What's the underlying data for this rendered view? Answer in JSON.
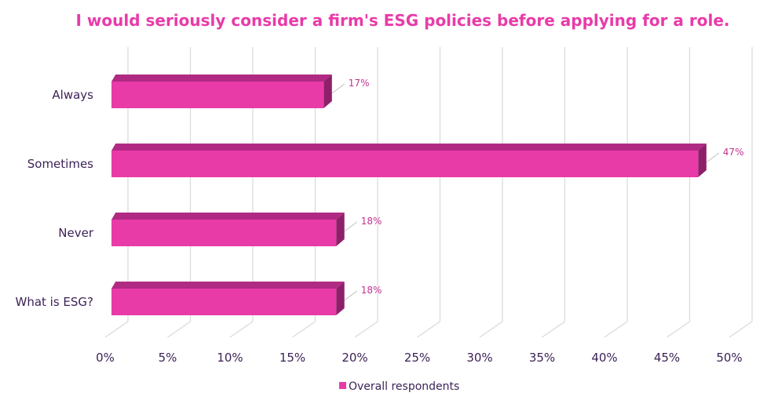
{
  "colors": {
    "title": "#e83ba8",
    "bar_front": "#e83ba8",
    "bar_top": "#b02a83",
    "bar_side": "#8e1f69",
    "label_text": "#3d2257",
    "data_label": "#c2338f",
    "grid": "#d9d9d9"
  },
  "chart_data": {
    "type": "bar",
    "orientation": "horizontal",
    "style": "3d",
    "title": "I would seriously consider a firm's ESG policies before applying for a role.",
    "categories": [
      "Always",
      "Sometimes",
      "Never",
      "What is ESG?"
    ],
    "series": [
      {
        "name": "Overall respondents",
        "values": [
          17,
          47,
          18,
          18
        ],
        "labels": [
          "17%",
          "47%",
          "18%",
          "18%"
        ]
      }
    ],
    "xlim": [
      0,
      50
    ],
    "xticks": [
      "0%",
      "5%",
      "10%",
      "15%",
      "20%",
      "25%",
      "30%",
      "35%",
      "40%",
      "45%",
      "50%"
    ],
    "grid": true,
    "legend": "bottom"
  }
}
